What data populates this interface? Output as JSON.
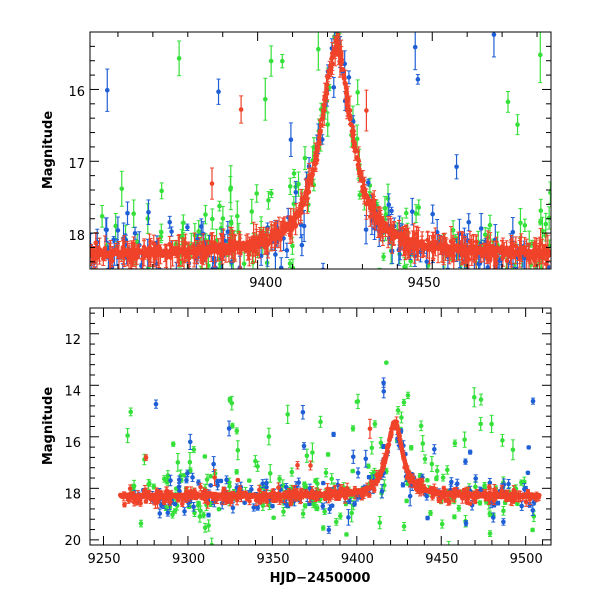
{
  "colors": {
    "red": "#f0432a",
    "blue": "#1f5fd6",
    "green": "#35e03a",
    "frame": "#000000"
  },
  "chart_data": [
    {
      "id": "top",
      "type": "scatter",
      "title": "",
      "xlabel": "",
      "ylabel": "Magnitude",
      "xlim": [
        9352,
        9484
      ],
      "ylim": [
        18.5,
        15.2
      ],
      "x_ticks": [
        9400,
        9450
      ],
      "x_tick_labels": [
        "9400",
        "9450"
      ],
      "y_ticks": [
        16,
        17,
        18
      ],
      "y_tick_labels": [
        "16",
        "17",
        "18"
      ],
      "model": {
        "t0": 9422.5,
        "peak": 15.42,
        "base": 18.3,
        "width": 5.5,
        "x_range": [
          9352,
          9484
        ]
      },
      "series": [
        {
          "name": "green",
          "color": "green",
          "n": 220,
          "noise": 0.3,
          "out_frac": 0.18,
          "seed": 11,
          "x_range": [
            9352,
            9484
          ]
        },
        {
          "name": "blue",
          "color": "blue",
          "n": 200,
          "noise": 0.22,
          "out_frac": 0.1,
          "seed": 23,
          "x_range": [
            9352,
            9484
          ]
        },
        {
          "name": "red",
          "color": "red",
          "n": 520,
          "noise": 0.06,
          "out_frac": 0.02,
          "seed": 37,
          "x_range": [
            9352,
            9484
          ]
        }
      ]
    },
    {
      "id": "bottom",
      "type": "scatter",
      "title": "",
      "xlabel": "HJD−2450000",
      "ylabel": "Magnitude",
      "xlim": [
        9242,
        9515
      ],
      "ylim": [
        20.2,
        11
      ],
      "x_ticks": [
        9250,
        9300,
        9350,
        9400,
        9450,
        9500
      ],
      "x_tick_labels": [
        "9250",
        "9300",
        "9350",
        "9400",
        "9450",
        "9500"
      ],
      "y_ticks": [
        12,
        14,
        16,
        18,
        20
      ],
      "y_tick_labels": [
        "12",
        "14",
        "16",
        "18",
        "20"
      ],
      "model": {
        "t0": 9422.5,
        "peak": 15.42,
        "base": 18.3,
        "width": 5.5,
        "x_range": [
          9260,
          9508
        ]
      },
      "series": [
        {
          "name": "green",
          "color": "green",
          "n": 260,
          "noise": 0.5,
          "out_frac": 0.25,
          "seed": 41,
          "x_range": [
            9262,
            9505
          ]
        },
        {
          "name": "blue",
          "color": "blue",
          "n": 200,
          "noise": 0.35,
          "out_frac": 0.12,
          "seed": 53,
          "x_range": [
            9262,
            9505
          ]
        },
        {
          "name": "red",
          "color": "red",
          "n": 420,
          "noise": 0.12,
          "out_frac": 0.03,
          "seed": 67,
          "x_range": [
            9262,
            9508
          ]
        }
      ]
    }
  ]
}
